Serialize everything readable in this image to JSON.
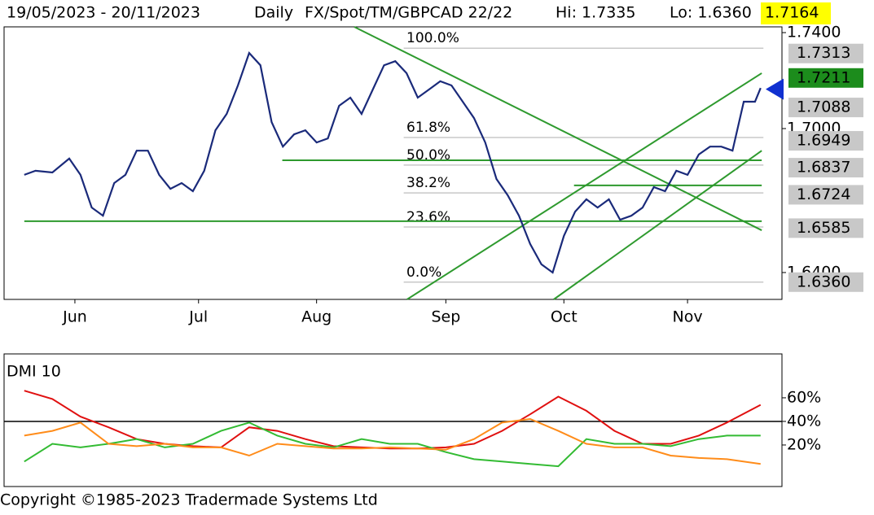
{
  "chart_data": [
    {
      "type": "line",
      "header": [
        "19/05/2023 - 20/11/2023",
        "Daily",
        "FX/Spot/TM/GBPCAD 22/22",
        "Hi: 1.7335",
        "Lo: 1.6360"
      ],
      "last": 1.7164,
      "x": [
        0,
        2,
        5,
        8,
        10,
        12,
        14,
        16,
        18,
        20,
        22,
        24,
        26,
        28,
        30,
        32,
        34,
        36,
        38,
        40,
        42,
        44,
        46,
        48,
        50,
        52,
        54,
        56,
        58,
        60,
        62,
        64,
        66,
        68,
        70,
        72,
        74,
        76,
        78,
        80,
        82,
        84,
        86,
        88,
        90,
        92,
        94,
        96,
        98,
        100,
        102,
        104,
        106,
        108,
        110,
        112,
        114,
        116,
        118,
        120,
        122,
        124,
        126,
        128,
        130,
        131
      ],
      "series": [
        {
          "color": "#1a2a7a",
          "values": [
            1.6807,
            1.6824,
            1.6817,
            1.6875,
            1.6807,
            1.6671,
            1.6637,
            1.6773,
            1.6807,
            1.6908,
            1.6908,
            1.6807,
            1.6749,
            1.6773,
            1.6739,
            1.6824,
            1.6993,
            1.7061,
            1.718,
            1.7315,
            1.7264,
            1.7027,
            1.6925,
            1.6976,
            1.6993,
            1.6942,
            1.6959,
            1.7095,
            1.7129,
            1.7061,
            1.7163,
            1.7264,
            1.7281,
            1.7231,
            1.7129,
            1.7163,
            1.7197,
            1.718,
            1.7112,
            1.7044,
            1.6942,
            1.679,
            1.6722,
            1.6637,
            1.6519,
            1.6434,
            1.64,
            1.6553,
            1.6654,
            1.6705,
            1.6671,
            1.6705,
            1.662,
            1.6637,
            1.6671,
            1.6756,
            1.6739,
            1.6824,
            1.6807,
            1.6892,
            1.6925,
            1.6925,
            1.6908,
            1.7112,
            1.7112,
            1.7169
          ]
        }
      ],
      "xlim": [
        -3.6,
        134.8
      ],
      "xticks": [
        {
          "value": 9,
          "label": "Jun"
        },
        {
          "value": 31,
          "label": "Jul"
        },
        {
          "value": 52,
          "label": "Aug"
        },
        {
          "value": 75,
          "label": "Sep"
        },
        {
          "value": 96,
          "label": "Oct"
        },
        {
          "value": 118,
          "label": "Nov"
        }
      ],
      "ylim": [
        1.6288,
        1.7424
      ],
      "yticks": [
        {
          "value": 1.74,
          "label": "1.7400"
        },
        {
          "value": 1.7,
          "label": "1.7000"
        },
        {
          "value": 1.64,
          "label": "1.6400"
        }
      ],
      "fib_levels": [
        {
          "label": "100.0%",
          "value": 1.7335
        },
        {
          "label": "61.8%",
          "value": 1.6963
        },
        {
          "label": "50.0%",
          "value": 1.6848
        },
        {
          "label": "38.2%",
          "value": 1.6732
        },
        {
          "label": "23.6%",
          "value": 1.659
        },
        {
          "label": "0.0%",
          "value": 1.636
        }
      ],
      "trendlines": [
        {
          "x": [
            58.7,
            131.2
          ],
          "y": [
            1.7424,
            1.6576
          ]
        },
        {
          "x": [
            68.1,
            131.2
          ],
          "y": [
            1.6288,
            1.7231
          ]
        },
        {
          "x": [
            94.2,
            131.2
          ],
          "y": [
            1.6288,
            1.6908
          ]
        },
        {
          "x": [
            45.9,
            131.2
          ],
          "y": [
            1.6868,
            1.6868
          ]
        },
        {
          "x": [
            0,
            131.2
          ],
          "y": [
            1.6614,
            1.6614
          ]
        },
        {
          "x": [
            97.8,
            131.2
          ],
          "y": [
            1.6763,
            1.6763
          ]
        }
      ],
      "trend_color": "#2e9a2e",
      "price_labels": [
        {
          "value": 1.7313,
          "color": "#c8c8c8"
        },
        {
          "value": 1.7211,
          "color": "#1c8c1c"
        },
        {
          "value": 1.7088,
          "color": "#c8c8c8"
        },
        {
          "value": 1.6949,
          "color": "#c8c8c8"
        },
        {
          "value": 1.6837,
          "color": "#c8c8c8"
        },
        {
          "value": 1.6724,
          "color": "#c8c8c8"
        },
        {
          "value": 1.6585,
          "color": "#c8c8c8"
        },
        {
          "value": 1.636,
          "label": "1.6360",
          "color": "#c8c8c8"
        }
      ]
    },
    {
      "type": "line",
      "title": "DMI 10",
      "x": [
        0,
        5,
        10,
        15,
        20,
        25,
        30,
        35,
        40,
        45,
        50,
        55,
        60,
        65,
        70,
        75,
        80,
        85,
        90,
        95,
        100,
        105,
        110,
        115,
        120,
        125,
        131
      ],
      "series": [
        {
          "color": "#e01010",
          "values": [
            66,
            59,
            44,
            35,
            25,
            21,
            19,
            18,
            35,
            32,
            25,
            19,
            18,
            17,
            17,
            18,
            21,
            32,
            46,
            61,
            49,
            32,
            21,
            21,
            28,
            39,
            54
          ]
        },
        {
          "color": "#33bb33",
          "values": [
            6,
            21,
            18,
            21,
            25,
            18,
            21,
            32,
            39,
            28,
            21,
            18,
            25,
            21,
            21,
            14,
            8,
            6,
            4,
            2,
            25,
            21,
            21,
            19,
            25,
            28,
            28
          ]
        },
        {
          "color": "#ff8c1a",
          "values": [
            28,
            32,
            39,
            21,
            19,
            21,
            18,
            18,
            11,
            21,
            19,
            17,
            17,
            18,
            17,
            16,
            25,
            39,
            42,
            32,
            21,
            18,
            18,
            11,
            9,
            8,
            4
          ]
        }
      ],
      "xlim": [
        -3.6,
        134.8
      ],
      "ylim": [
        -15.2,
        97.2
      ],
      "yticks": [
        {
          "value": 60,
          "label": "60%"
        },
        {
          "value": 40,
          "label": "40%"
        },
        {
          "value": 20,
          "label": "20%"
        }
      ],
      "reference_line": 40
    }
  ],
  "footer": "Copyright ©1985-2023 Tradermade Systems Ltd"
}
